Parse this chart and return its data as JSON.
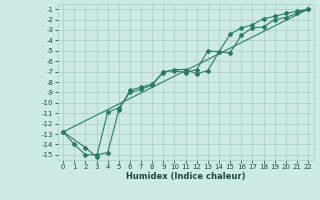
{
  "xlabel": "Humidex (Indice chaleur)",
  "background_color": "#ceeae4",
  "grid_color": "#aed0c8",
  "line_color": "#2a7a6a",
  "xlim": [
    -0.5,
    22.5
  ],
  "ylim": [
    -15.5,
    -0.5
  ],
  "xticks": [
    0,
    1,
    2,
    3,
    4,
    5,
    6,
    7,
    8,
    9,
    10,
    11,
    12,
    13,
    14,
    15,
    16,
    17,
    18,
    19,
    20,
    21,
    22
  ],
  "yticks": [
    -15,
    -14,
    -13,
    -12,
    -11,
    -10,
    -9,
    -8,
    -7,
    -6,
    -5,
    -4,
    -3,
    -2,
    -1
  ],
  "line1_x": [
    0,
    1,
    2,
    3,
    4,
    5,
    6,
    7,
    8,
    9,
    10,
    11,
    12,
    13,
    14,
    15,
    16,
    17,
    18,
    19,
    20,
    21,
    22
  ],
  "line1_y": [
    -12.8,
    -14.0,
    -15.0,
    -15.0,
    -14.8,
    -10.7,
    -8.8,
    -8.5,
    -8.2,
    -7.1,
    -6.8,
    -6.8,
    -7.2,
    -6.9,
    -5.1,
    -5.2,
    -3.5,
    -2.8,
    -2.7,
    -2.0,
    -1.8,
    -1.4,
    -1.0
  ],
  "line2_x": [
    0,
    2,
    3,
    4,
    5,
    6,
    7,
    8,
    9,
    10,
    11,
    12,
    13,
    14,
    15,
    16,
    17,
    18,
    19,
    20,
    21,
    22
  ],
  "line2_y": [
    -12.8,
    -14.3,
    -15.2,
    -10.9,
    -10.5,
    -9.0,
    -8.7,
    -8.3,
    -7.0,
    -6.9,
    -7.1,
    -6.8,
    -5.0,
    -5.1,
    -3.4,
    -2.8,
    -2.5,
    -1.9,
    -1.7,
    -1.4,
    -1.2,
    -1.0
  ],
  "line3_x": [
    0,
    22
  ],
  "line3_y": [
    -12.8,
    -1.0
  ],
  "label_fontsize": 5,
  "xlabel_fontsize": 6
}
